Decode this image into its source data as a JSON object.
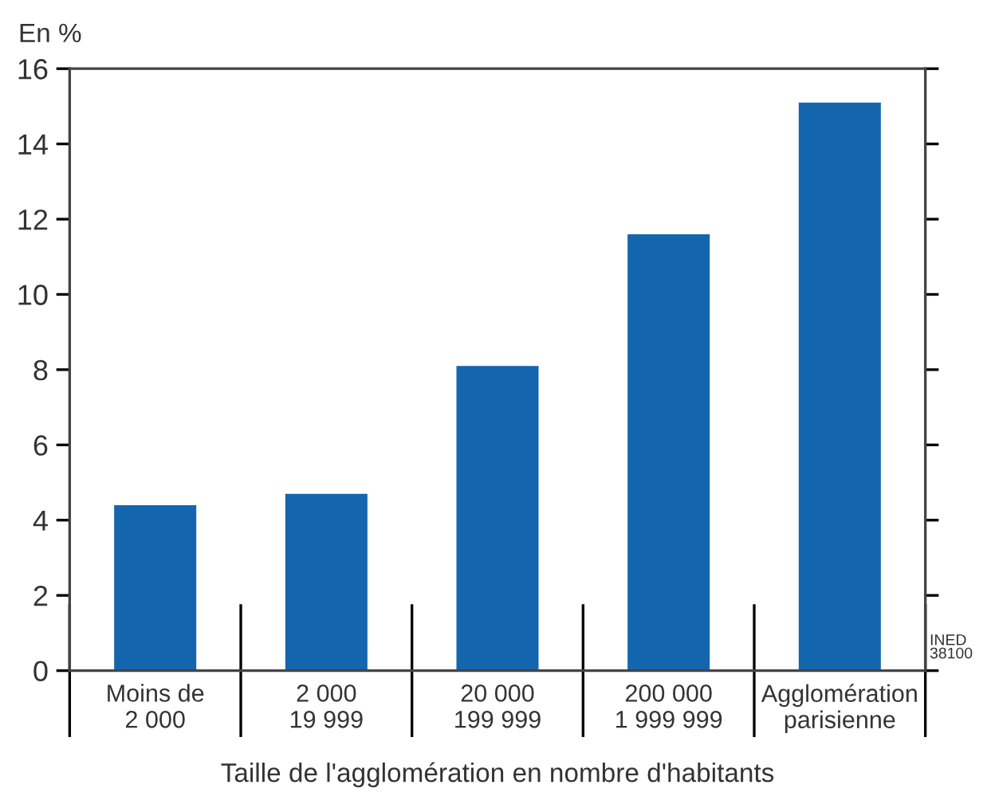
{
  "chart_data": {
    "type": "bar",
    "ylabel": "En %",
    "xlabel": "Taille de l'agglomération en nombre d'habitants",
    "categories": [
      "Moins de\n2 000",
      "2 000\n19 999",
      "20 000\n199 999",
      "200 000\n1 999 999",
      "Agglomération\nparisienne"
    ],
    "values": [
      4.4,
      4.7,
      8.1,
      11.6,
      15.1
    ],
    "color": "#1366ae",
    "ylim": [
      0,
      16
    ],
    "yticks": [
      0,
      2,
      4,
      6,
      8,
      10,
      12,
      14,
      16
    ],
    "grid": false,
    "annotations": [
      "INED\n38100"
    ]
  }
}
